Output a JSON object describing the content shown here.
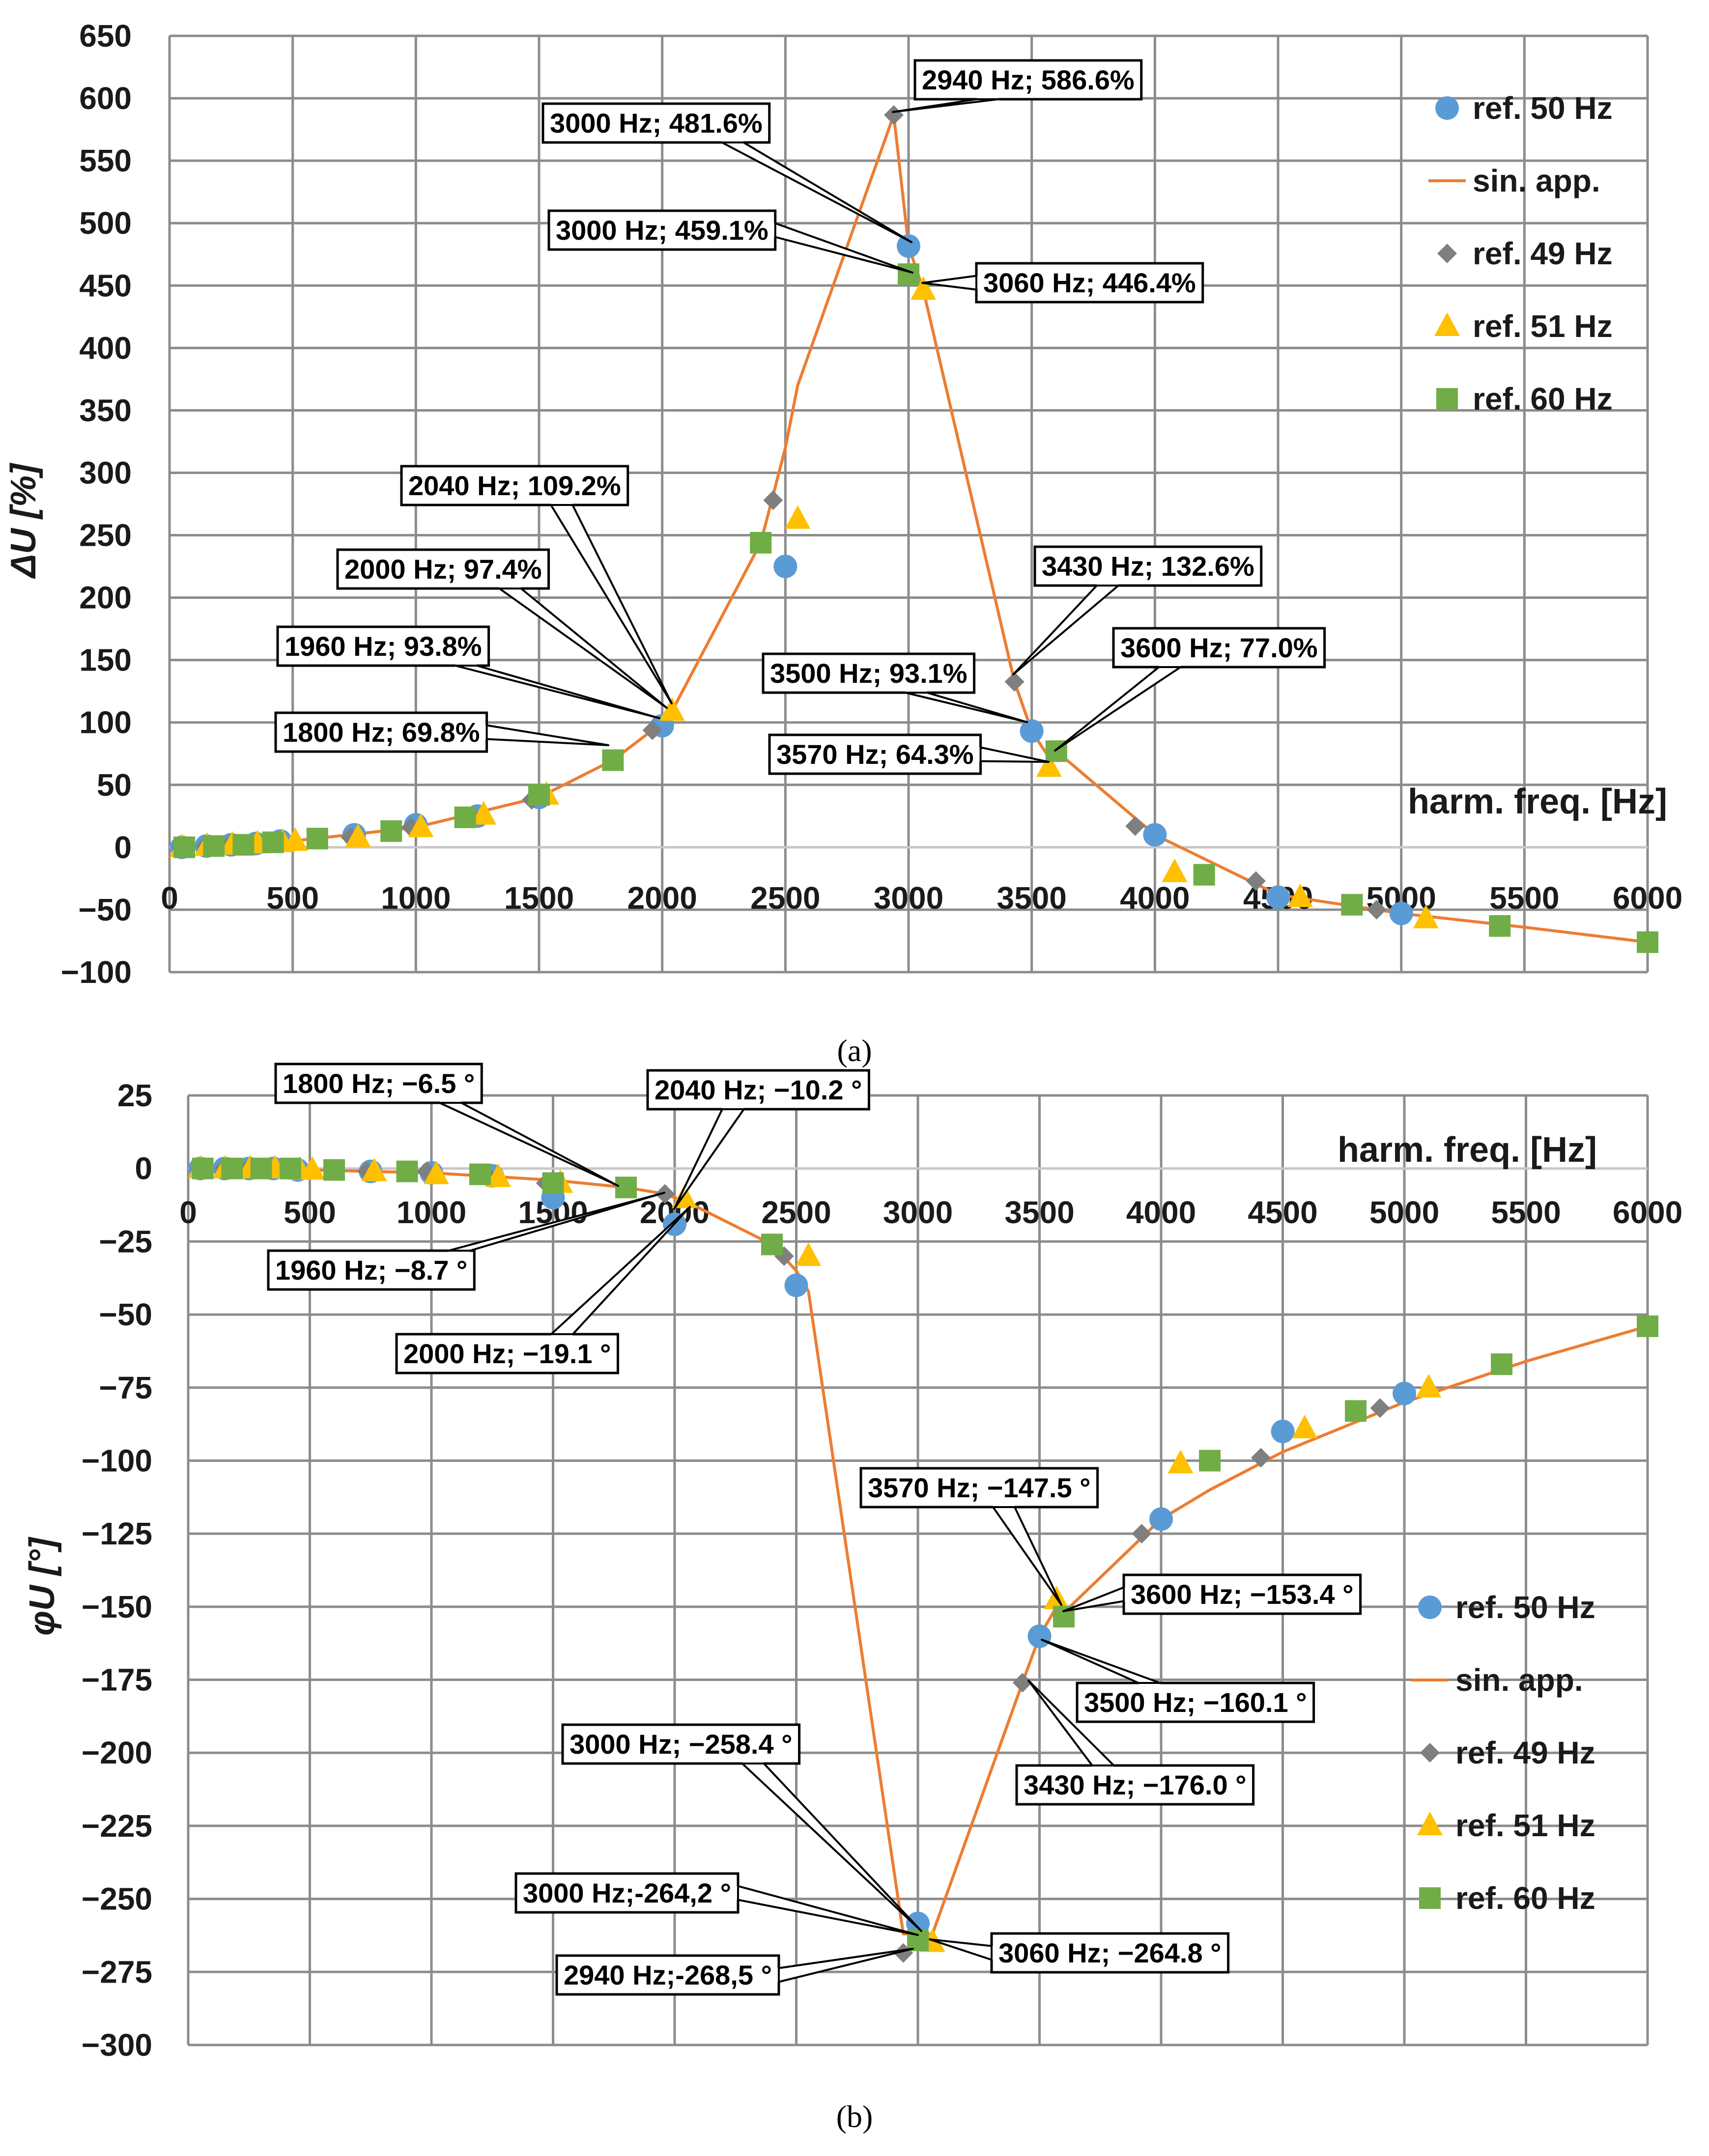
{
  "colors": {
    "ref50": "#5b9bd5",
    "sinapp": "#ed7d31",
    "ref49": "#7f7f7f",
    "ref51": "#ffc000",
    "ref60": "#70ad47",
    "grid": "#8c8c8c",
    "zero": "#c8c8c8"
  },
  "chart_data": [
    {
      "type": "scatter",
      "panel_label": "(a)",
      "ylabel": "ΔU [%]",
      "xlabel": "harm. freq. [Hz]",
      "xlim": [
        0,
        6000
      ],
      "ylim": [
        -100,
        650
      ],
      "xticks": [
        0,
        500,
        1000,
        1500,
        2000,
        2500,
        3000,
        3500,
        4000,
        4500,
        5000,
        5500,
        6000
      ],
      "yticks": [
        -100,
        -50,
        0,
        50,
        100,
        150,
        200,
        250,
        300,
        350,
        400,
        450,
        500,
        550,
        600,
        650
      ],
      "legend": [
        "ref. 50 Hz",
        "sin. app.",
        "ref. 49 Hz",
        "ref. 51 Hz",
        "ref. 60 Hz"
      ],
      "series": [
        {
          "name": "ref. 50 Hz",
          "key": "ref50",
          "marker": "circle",
          "x": [
            50,
            150,
            250,
            350,
            450,
            750,
            1000,
            1250,
            1500,
            2000,
            2500,
            3000,
            3500,
            4000,
            4500,
            5000
          ],
          "y": [
            0,
            1,
            2,
            3,
            5,
            10,
            18,
            25,
            40,
            97.4,
            225,
            481.6,
            93.1,
            10,
            -40,
            -53
          ]
        },
        {
          "name": "ref. 49 Hz",
          "key": "ref49",
          "marker": "diamond",
          "x": [
            49,
            147,
            245,
            343,
            441,
            735,
            980,
            1225,
            1470,
            1960,
            2450,
            2940,
            3430,
            3920,
            4410,
            4900
          ],
          "y": [
            0,
            1,
            2,
            3,
            4,
            8,
            16,
            25,
            38,
            93.8,
            278,
            586.6,
            132.6,
            17,
            -27,
            -50
          ]
        },
        {
          "name": "ref. 51 Hz",
          "key": "ref51",
          "marker": "triangle",
          "x": [
            51,
            153,
            255,
            357,
            459,
            510,
            765,
            1020,
            1275,
            1530,
            2040,
            2550,
            3060,
            3570,
            4080,
            4590,
            5100
          ],
          "y": [
            0,
            1,
            2,
            3,
            4,
            5,
            8,
            16,
            26,
            42,
            109.2,
            263,
            446.4,
            64.3,
            -20,
            -40,
            -57
          ]
        },
        {
          "name": "ref. 60 Hz",
          "key": "ref60",
          "marker": "square",
          "x": [
            60,
            180,
            300,
            420,
            600,
            900,
            1200,
            1500,
            1800,
            2400,
            3000,
            3600,
            4200,
            4800,
            5400,
            6000
          ],
          "y": [
            0,
            1,
            2,
            4,
            7,
            13,
            24,
            42,
            69.8,
            244,
            459.1,
            77.0,
            -22,
            -46,
            -63,
            -76
          ]
        }
      ],
      "line": {
        "name": "sin. app.",
        "key": "sinapp",
        "x": [
          50,
          500,
          1000,
          1500,
          1800,
          1960,
          2000,
          2040,
          2400,
          2500,
          2550,
          2940,
          3000,
          3060,
          3430,
          3500,
          3570,
          3600,
          4000,
          4500,
          5000,
          5500,
          6000
        ],
        "y": [
          0,
          5,
          16,
          40,
          69.8,
          93.8,
          97.4,
          109.2,
          244,
          320,
          370,
          586.6,
          481.6,
          446.4,
          132.6,
          93.1,
          72,
          77.0,
          10,
          -38,
          -53,
          -64,
          -76
        ]
      },
      "annotations": [
        {
          "text": "2940 Hz; 586.6%",
          "x": 2940,
          "y": 586.6
        },
        {
          "text": "3000 Hz; 481.6%",
          "x": 3000,
          "y": 481.6
        },
        {
          "text": "3000 Hz; 459.1%",
          "x": 3000,
          "y": 459.1
        },
        {
          "text": "3060 Hz; 446.4%",
          "x": 3060,
          "y": 446.4
        },
        {
          "text": "2040 Hz; 109.2%",
          "x": 2040,
          "y": 109.2
        },
        {
          "text": "2000 Hz; 97.4%",
          "x": 2000,
          "y": 97.4
        },
        {
          "text": "1960 Hz; 93.8%",
          "x": 1960,
          "y": 93.8
        },
        {
          "text": "1800 Hz; 69.8%",
          "x": 1800,
          "y": 69.8
        },
        {
          "text": "3430 Hz; 132.6%",
          "x": 3430,
          "y": 132.6
        },
        {
          "text": "3600 Hz; 77.0%",
          "x": 3600,
          "y": 77.0
        },
        {
          "text": "3500 Hz; 93.1%",
          "x": 3500,
          "y": 93.1
        },
        {
          "text": "3570 Hz; 64.3%",
          "x": 3570,
          "y": 64.3
        }
      ]
    },
    {
      "type": "scatter",
      "panel_label": "(b)",
      "ylabel": "φU [°]",
      "xlabel": "harm. freq. [Hz]",
      "xlim": [
        0,
        6000
      ],
      "ylim": [
        -300,
        25
      ],
      "xticks": [
        0,
        500,
        1000,
        1500,
        2000,
        2500,
        3000,
        3500,
        4000,
        4500,
        5000,
        5500,
        6000
      ],
      "yticks": [
        -300,
        -275,
        -250,
        -225,
        -200,
        -175,
        -150,
        -125,
        -100,
        -75,
        -50,
        -25,
        0,
        25
      ],
      "legend": [
        "ref. 50 Hz",
        "sin. app.",
        "ref. 49 Hz",
        "ref. 51 Hz",
        "ref. 60 Hz"
      ],
      "series": [
        {
          "name": "ref. 50 Hz",
          "key": "ref50",
          "marker": "circle",
          "x": [
            50,
            150,
            250,
            350,
            450,
            750,
            1000,
            1250,
            1500,
            2000,
            2500,
            3000,
            3500,
            4000,
            4500,
            5000
          ],
          "y": [
            0,
            0,
            0,
            0,
            -0.5,
            -1,
            -1.5,
            -2.5,
            -10,
            -19.1,
            -40,
            -258.4,
            -160.1,
            -120,
            -90,
            -77
          ]
        },
        {
          "name": "ref. 49 Hz",
          "key": "ref49",
          "marker": "diamond",
          "x": [
            49,
            147,
            245,
            343,
            441,
            735,
            980,
            1225,
            1470,
            1960,
            2450,
            2940,
            3430,
            3920,
            4410,
            4900
          ],
          "y": [
            0,
            0,
            0,
            0,
            -0.5,
            -1,
            -1,
            -2,
            -5,
            -8.7,
            -30,
            -268.5,
            -176.0,
            -125,
            -99,
            -82
          ]
        },
        {
          "name": "ref. 51 Hz",
          "key": "ref51",
          "marker": "triangle",
          "x": [
            51,
            153,
            255,
            357,
            459,
            510,
            765,
            1020,
            1275,
            1530,
            2040,
            2550,
            3060,
            3570,
            4080,
            4590,
            5100
          ],
          "y": [
            0,
            0,
            0,
            0,
            -0.5,
            -0.5,
            -1,
            -2,
            -3,
            -5,
            -10.2,
            -30,
            -264.8,
            -147.5,
            -101,
            -89,
            -75
          ]
        },
        {
          "name": "ref. 60 Hz",
          "key": "ref60",
          "marker": "square",
          "x": [
            60,
            180,
            300,
            420,
            600,
            900,
            1200,
            1500,
            1800,
            2400,
            3000,
            3600,
            4200,
            4800,
            5400,
            6000
          ],
          "y": [
            0,
            0,
            0,
            0,
            -0.5,
            -1,
            -2,
            -5,
            -6.5,
            -26,
            -264.2,
            -153.4,
            -100,
            -83,
            -67,
            -54
          ]
        }
      ],
      "line": {
        "name": "sin. app.",
        "key": "sinapp",
        "x": [
          50,
          500,
          1000,
          1500,
          1800,
          1960,
          2000,
          2040,
          2400,
          2500,
          2550,
          2940,
          3000,
          3060,
          3430,
          3500,
          3570,
          3600,
          4000,
          4200,
          4500,
          5000,
          5500,
          6000
        ],
        "y": [
          0,
          -0.5,
          -1.5,
          -4,
          -6.5,
          -8.7,
          -10,
          -11,
          -26,
          -35,
          -42,
          -262,
          -262,
          -262,
          -176.0,
          -160.1,
          -150,
          -152,
          -120,
          -110,
          -97,
          -80,
          -66,
          -54
        ]
      },
      "annotations": [
        {
          "text": "1800 Hz; −6.5 °",
          "x": 1800,
          "y": -6.5
        },
        {
          "text": "2040 Hz; −10.2 °",
          "x": 2040,
          "y": -10.2
        },
        {
          "text": "1960 Hz; −8.7 °",
          "x": 1960,
          "y": -8.7
        },
        {
          "text": "2000 Hz; −19.1 °",
          "x": 2000,
          "y": -19.1
        },
        {
          "text": "3570 Hz; −147.5 °",
          "x": 3570,
          "y": -147.5
        },
        {
          "text": "3600 Hz; −153.4 °",
          "x": 3600,
          "y": -153.4
        },
        {
          "text": "3500 Hz; −160.1 °",
          "x": 3500,
          "y": -160.1
        },
        {
          "text": "3430 Hz; −176.0 °",
          "x": 3430,
          "y": -176.0
        },
        {
          "text": "3000 Hz; −258.4 °",
          "x": 3000,
          "y": -258.4
        },
        {
          "text": "3000 Hz;-264,2 °",
          "x": 3000,
          "y": -264.2
        },
        {
          "text": "3060 Hz; −264.8 °",
          "x": 3060,
          "y": -264.8
        },
        {
          "text": "2940 Hz;-268,5 °",
          "x": 2940,
          "y": -268.5
        }
      ]
    }
  ]
}
